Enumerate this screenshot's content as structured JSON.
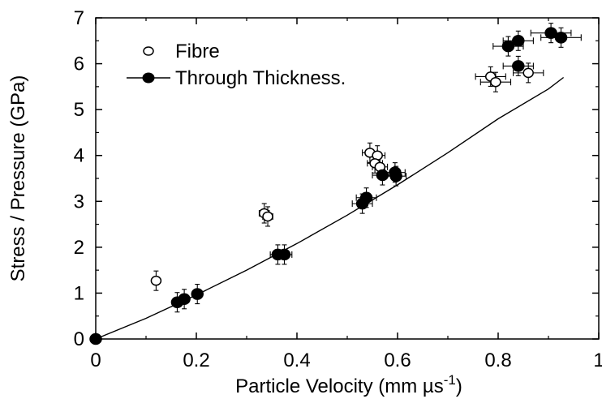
{
  "chart_data": {
    "type": "scatter",
    "xlabel": "Particle Velocity (mm µs",
    "xlabel_superscript": "-1",
    "xlabel_close": ")",
    "ylabel": "Stress / Pressure (GPa)",
    "xlim": [
      0,
      1
    ],
    "ylim": [
      0,
      7
    ],
    "x_ticks": [
      "0",
      "0.2",
      "0.4",
      "0.6",
      "0.8",
      "1"
    ],
    "y_ticks": [
      "0",
      "1",
      "2",
      "3",
      "4",
      "5",
      "6",
      "7"
    ],
    "grid": false,
    "legend_position": "top-left",
    "series": [
      {
        "name": "Fibre",
        "marker": "open-circle",
        "points": [
          {
            "x": 0.0,
            "y": 0.0,
            "xerr": 0.0
          },
          {
            "x": 0.12,
            "y": 1.27,
            "xerr": 0.005
          },
          {
            "x": 0.335,
            "y": 2.74,
            "xerr": 0.01
          },
          {
            "x": 0.342,
            "y": 2.67,
            "xerr": 0.01
          },
          {
            "x": 0.545,
            "y": 4.06,
            "xerr": 0.015
          },
          {
            "x": 0.56,
            "y": 4.0,
            "xerr": 0.015
          },
          {
            "x": 0.555,
            "y": 3.83,
            "xerr": 0.015
          },
          {
            "x": 0.565,
            "y": 3.75,
            "xerr": 0.015
          },
          {
            "x": 0.785,
            "y": 5.72,
            "xerr": 0.03
          },
          {
            "x": 0.795,
            "y": 5.6,
            "xerr": 0.03
          },
          {
            "x": 0.86,
            "y": 5.8,
            "xerr": 0.03
          }
        ]
      },
      {
        "name": "Through Thickness.",
        "marker": "filled-circle",
        "points": [
          {
            "x": 0.0,
            "y": 0.0,
            "xerr": 0.0
          },
          {
            "x": 0.162,
            "y": 0.8,
            "xerr": 0.005
          },
          {
            "x": 0.176,
            "y": 0.87,
            "xerr": 0.005
          },
          {
            "x": 0.202,
            "y": 0.98,
            "xerr": 0.007
          },
          {
            "x": 0.362,
            "y": 1.84,
            "xerr": 0.015
          },
          {
            "x": 0.375,
            "y": 1.84,
            "xerr": 0.015
          },
          {
            "x": 0.53,
            "y": 2.95,
            "xerr": 0.02
          },
          {
            "x": 0.538,
            "y": 3.08,
            "xerr": 0.02
          },
          {
            "x": 0.57,
            "y": 3.57,
            "xerr": 0.02
          },
          {
            "x": 0.595,
            "y": 3.63,
            "xerr": 0.02
          },
          {
            "x": 0.597,
            "y": 3.55,
            "xerr": 0.02
          },
          {
            "x": 0.82,
            "y": 6.38,
            "xerr": 0.03
          },
          {
            "x": 0.84,
            "y": 5.95,
            "xerr": 0.03
          },
          {
            "x": 0.84,
            "y": 6.5,
            "xerr": 0.03
          },
          {
            "x": 0.905,
            "y": 6.67,
            "xerr": 0.04
          },
          {
            "x": 0.925,
            "y": 6.57,
            "xerr": 0.04
          }
        ]
      }
    ],
    "fit_line": {
      "x": [
        0.0,
        0.1,
        0.2,
        0.3,
        0.4,
        0.5,
        0.6,
        0.7,
        0.8,
        0.9,
        0.93
      ],
      "y": [
        0.0,
        0.45,
        0.96,
        1.5,
        2.08,
        2.7,
        3.36,
        4.06,
        4.8,
        5.45,
        5.7
      ]
    }
  }
}
